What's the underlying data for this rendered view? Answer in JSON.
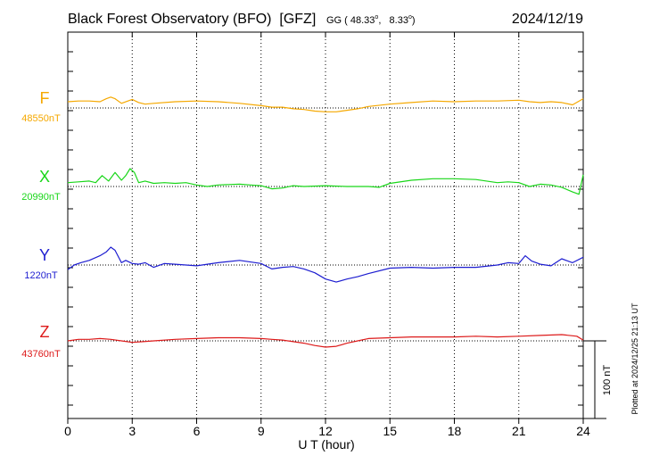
{
  "header": {
    "title": "Black Forest Observatory (BFO)  [GFZ]",
    "coords_prefix": "GG ( 48.33",
    "coords_mid": ",   8.33",
    "coords_suffix": ")",
    "date": "2024/12/19"
  },
  "side_note": "Plotted at 2024/12/25 21:13 UT",
  "scale_label": "100 nT",
  "colors": {
    "F": "#f5a800",
    "X": "#19d619",
    "Y": "#1d1dd0",
    "Z": "#dd1a1a",
    "axis": "#000000"
  },
  "chart_data": {
    "type": "line",
    "xlabel": "U T (hour)",
    "xlim": [
      0,
      24
    ],
    "x_ticks": [
      0,
      3,
      6,
      9,
      12,
      15,
      18,
      21,
      24
    ],
    "tick_labels": [
      "0",
      "3",
      "6",
      "9",
      "12",
      "15",
      "18",
      "21",
      "24"
    ],
    "grid": true,
    "scale_bar_nT": 100,
    "series": [
      {
        "name": "F",
        "baseline": "48550nT",
        "x": [
          0,
          0.5,
          1,
          1.5,
          1.8,
          2.0,
          2.2,
          2.5,
          2.8,
          3.0,
          3.3,
          3.6,
          4.0,
          5.0,
          6.0,
          7.0,
          8.0,
          9.0,
          9.5,
          10.0,
          10.5,
          11.0,
          11.5,
          12.0,
          12.5,
          13.0,
          13.5,
          14.0,
          15.0,
          16.0,
          17.0,
          18.0,
          19.0,
          20.0,
          21.0,
          21.5,
          22.0,
          22.5,
          23.0,
          23.5,
          24.0
        ],
        "y": [
          8,
          9,
          9,
          8,
          12,
          14,
          12,
          6,
          9,
          11,
          7,
          5,
          6,
          8,
          9,
          8,
          6,
          3,
          1,
          1,
          -1,
          -2,
          -4,
          -5,
          -5,
          -3,
          -1,
          2,
          5,
          7,
          9,
          8,
          9,
          9,
          10,
          8,
          7,
          8,
          7,
          4,
          12
        ]
      },
      {
        "name": "X",
        "baseline": "20990nT",
        "x": [
          0,
          0.5,
          1,
          1.3,
          1.6,
          1.9,
          2.2,
          2.5,
          2.7,
          2.9,
          3.1,
          3.3,
          3.6,
          4.0,
          4.5,
          5.0,
          5.5,
          6.0,
          6.5,
          7.0,
          8.0,
          8.5,
          9.0,
          9.5,
          10.0,
          10.5,
          11.0,
          12.0,
          13.0,
          14.0,
          14.5,
          15.0,
          16.0,
          17.0,
          18.0,
          19.0,
          20.0,
          20.5,
          21.0,
          21.5,
          22.0,
          22.5,
          23.0,
          23.5,
          23.8,
          24.0
        ],
        "y": [
          5,
          6,
          7,
          5,
          14,
          7,
          18,
          8,
          14,
          23,
          18,
          5,
          7,
          4,
          5,
          4,
          5,
          2,
          0,
          2,
          3,
          2,
          1,
          -3,
          -2,
          1,
          0,
          1,
          0,
          0,
          -1,
          4,
          8,
          10,
          10,
          9,
          5,
          6,
          5,
          0,
          3,
          2,
          -1,
          -7,
          -10,
          15
        ]
      },
      {
        "name": "Y",
        "baseline": "1220nT",
        "x": [
          0,
          0.3,
          0.6,
          1,
          1.5,
          1.8,
          2.0,
          2.2,
          2.5,
          2.7,
          3.0,
          3.3,
          3.6,
          4.0,
          4.5,
          5.0,
          5.5,
          6.0,
          7.0,
          8.0,
          9.0,
          9.5,
          10.0,
          10.5,
          11.0,
          11.5,
          12.0,
          12.5,
          13.0,
          13.5,
          14.0,
          15.0,
          16.0,
          17.0,
          18.0,
          19.0,
          20.0,
          20.5,
          21.0,
          21.3,
          21.6,
          22.0,
          22.5,
          23.0,
          23.5,
          24.0
        ],
        "y": [
          -6,
          0,
          3,
          6,
          12,
          17,
          23,
          19,
          3,
          6,
          2,
          1,
          3,
          -3,
          2,
          1,
          0,
          -1,
          3,
          6,
          2,
          -5,
          -3,
          -2,
          -5,
          -10,
          -18,
          -22,
          -18,
          -15,
          -11,
          -4,
          -3,
          -4,
          -3,
          -3,
          0,
          3,
          2,
          12,
          5,
          1,
          -1,
          8,
          3,
          10
        ]
      },
      {
        "name": "Z",
        "baseline": "43760nT",
        "x": [
          0,
          0.5,
          1,
          1.5,
          2,
          2.5,
          3,
          3.5,
          4,
          5,
          6,
          7,
          8,
          9,
          9.5,
          10,
          10.5,
          11,
          11.5,
          12,
          12.5,
          13,
          13.5,
          14,
          15,
          16,
          17,
          18,
          19,
          20,
          21,
          22,
          23,
          23.7,
          24
        ],
        "y": [
          0,
          2,
          2,
          3,
          2,
          0,
          -2,
          -1,
          0,
          2,
          3,
          4,
          4,
          3,
          2,
          1,
          -1,
          -3,
          -6,
          -8,
          -7,
          -3,
          0,
          3,
          4,
          5,
          5,
          5,
          6,
          5,
          6,
          7,
          8,
          6,
          1
        ]
      }
    ]
  }
}
